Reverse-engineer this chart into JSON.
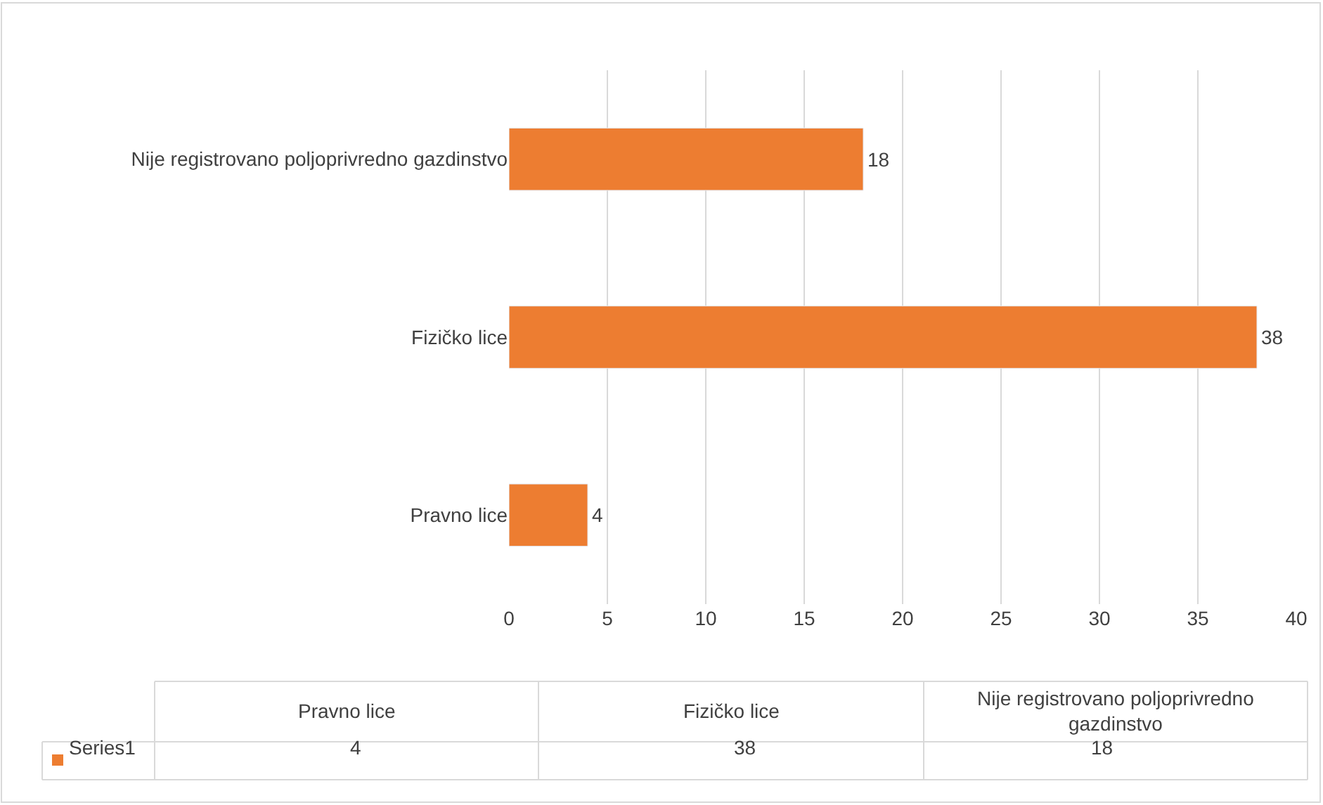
{
  "chart_data": {
    "type": "bar",
    "orientation": "horizontal",
    "categories": [
      "Nije registrovano poljoprivredno gazdinstvo",
      "Fizičko lice",
      "Pravno lice"
    ],
    "series": [
      {
        "name": "Series1",
        "color": "#ed7d31",
        "values": [
          18,
          38,
          4
        ]
      }
    ],
    "annotations": [
      "4",
      "38",
      "18"
    ],
    "xlim": [
      0,
      40
    ],
    "xticks": [
      0,
      5,
      10,
      15,
      20,
      25,
      30,
      35,
      40
    ],
    "grid": "x",
    "data_labels": true,
    "legend": "bottom"
  }
}
